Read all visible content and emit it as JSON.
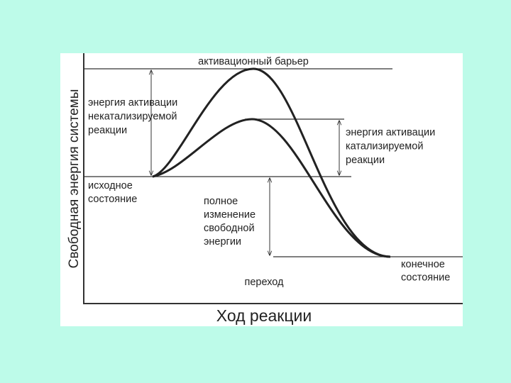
{
  "diagram": {
    "y_axis_label": "Свободная энергия системы",
    "x_axis_label": "Ход реакции",
    "barrier_label": "активационный барьер",
    "uncatalyzed_label": [
      "энергия активации",
      "некатализируемой",
      "реакции"
    ],
    "catalyzed_label": [
      "энергия активации",
      "катализируемой",
      "реакции"
    ],
    "initial_label": [
      "исходное",
      "состояние"
    ],
    "change_label": [
      "полное",
      "изменение",
      "свободной",
      "энергии"
    ],
    "transition_label": "переход",
    "final_label": [
      "конечное",
      "состояние"
    ]
  }
}
